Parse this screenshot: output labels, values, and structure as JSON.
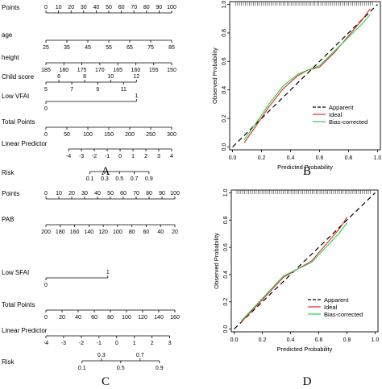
{
  "panels": {
    "A": "A",
    "B": "B",
    "C": "C",
    "D": "D"
  },
  "nomogram_A": {
    "rows": [
      {
        "label": "Points",
        "domain": [
          0,
          100
        ],
        "ticks": [
          0,
          10,
          20,
          30,
          40,
          50,
          60,
          70,
          80,
          90,
          100
        ],
        "tick_side": "above"
      },
      {
        "label": "age",
        "domain": [
          25,
          85
        ],
        "ticks": [
          25,
          35,
          45,
          55,
          65,
          75,
          85
        ],
        "tick_side": "below"
      },
      {
        "label": "height",
        "domain": [
          185,
          150
        ],
        "ticks": [
          185,
          180,
          175,
          170,
          165,
          160,
          155,
          150
        ],
        "tick_side": "below"
      },
      {
        "label": "Child score",
        "domain": [
          5,
          12
        ],
        "ticks": [
          5,
          6,
          7,
          8,
          9,
          10,
          11,
          12
        ],
        "tick_side": "alternate"
      },
      {
        "label": "Low VFAI",
        "domain": [
          0,
          1
        ],
        "ticks": [
          0,
          1
        ],
        "tick_side": "alternate"
      },
      {
        "label": "Total Points",
        "domain": [
          0,
          300
        ],
        "ticks": [
          0,
          50,
          100,
          150,
          200,
          250,
          300
        ],
        "tick_side": "below"
      },
      {
        "label": "Linear Predictor",
        "domain": [
          -4,
          4
        ],
        "ticks": [
          -4,
          -3,
          -2,
          -1,
          0,
          1,
          2,
          3,
          4
        ],
        "tick_side": "below"
      },
      {
        "label": "Risk",
        "domain": [
          0.1,
          0.9
        ],
        "ticks": [
          0.1,
          0.3,
          0.5,
          0.7,
          0.9
        ],
        "tick_side": "below"
      }
    ]
  },
  "nomogram_C": {
    "rows": [
      {
        "label": "Points",
        "domain": [
          0,
          100
        ],
        "ticks": [
          0,
          10,
          20,
          30,
          40,
          50,
          60,
          70,
          80,
          90,
          100
        ],
        "tick_side": "above"
      },
      {
        "label": "PAB",
        "domain": [
          200,
          20
        ],
        "ticks": [
          200,
          180,
          160,
          140,
          120,
          100,
          80,
          60,
          40,
          20
        ],
        "tick_side": "below"
      },
      {
        "label": "Low SFAI",
        "domain": [
          0,
          1
        ],
        "ticks": [
          0,
          1
        ],
        "tick_side": "alternate"
      },
      {
        "label": "Total Points",
        "domain": [
          0,
          160
        ],
        "ticks": [
          0,
          20,
          40,
          60,
          80,
          100,
          120,
          140,
          160
        ],
        "tick_side": "below"
      },
      {
        "label": "Linear Predictor",
        "domain": [
          -4,
          3
        ],
        "ticks": [
          -4,
          -3,
          -2,
          -1,
          0,
          1,
          2,
          3
        ],
        "tick_side": "below"
      },
      {
        "label": "Risk",
        "domain": [
          0.1,
          0.9
        ],
        "ticks": [
          0.1,
          0.3,
          0.5,
          0.7,
          0.9
        ],
        "tick_side": "alternate"
      }
    ]
  },
  "chart_data": [
    {
      "type": "line",
      "panel": "B",
      "xlabel": "Predicted Probability",
      "ylabel": "Observed Probability",
      "xlim": [
        -0.02,
        1.02
      ],
      "ylim": [
        -0.02,
        1.02
      ],
      "xticks": [
        0.0,
        0.2,
        0.4,
        0.6,
        0.8,
        1.0
      ],
      "yticks": [
        0.0,
        0.2,
        0.4,
        0.6,
        0.8,
        1.0
      ],
      "grid": false,
      "legend": "bottom-right",
      "series": [
        {
          "name": "Apparent",
          "color": "#000000",
          "dash": "6,4",
          "x": [
            0.0,
            1.0
          ],
          "y": [
            0.0,
            1.0
          ]
        },
        {
          "name": "Ideal",
          "color": "#e8272a",
          "dash": "",
          "x": [
            0.08,
            0.15,
            0.25,
            0.35,
            0.45,
            0.52,
            0.6,
            0.7,
            0.8,
            0.9,
            0.95
          ],
          "y": [
            0.03,
            0.13,
            0.28,
            0.41,
            0.5,
            0.54,
            0.56,
            0.66,
            0.78,
            0.9,
            0.97
          ]
        },
        {
          "name": "Bias-corrected",
          "color": "#28d24a",
          "dash": "",
          "x": [
            0.08,
            0.15,
            0.25,
            0.35,
            0.45,
            0.52,
            0.6,
            0.7,
            0.8,
            0.9,
            0.95
          ],
          "y": [
            0.05,
            0.15,
            0.3,
            0.43,
            0.51,
            0.54,
            0.57,
            0.67,
            0.77,
            0.87,
            0.93
          ]
        }
      ]
    },
    {
      "type": "line",
      "panel": "D",
      "xlabel": "Predicted Probability",
      "ylabel": "Observed Probability",
      "xlim": [
        -0.02,
        1.02
      ],
      "ylim": [
        -0.02,
        1.02
      ],
      "xticks": [
        0.0,
        0.2,
        0.4,
        0.6,
        0.8,
        1.0
      ],
      "yticks": [
        0.0,
        0.2,
        0.4,
        0.6,
        0.8,
        1.0
      ],
      "grid": false,
      "legend": "bottom-right",
      "series": [
        {
          "name": "Apparent",
          "color": "#000000",
          "dash": "6,4",
          "x": [
            0.0,
            1.0
          ],
          "y": [
            0.0,
            1.0
          ]
        },
        {
          "name": "Ideal",
          "color": "#e8272a",
          "dash": "",
          "x": [
            0.05,
            0.15,
            0.25,
            0.35,
            0.45,
            0.55,
            0.65,
            0.75,
            0.8
          ],
          "y": [
            0.05,
            0.16,
            0.27,
            0.38,
            0.44,
            0.5,
            0.62,
            0.74,
            0.82
          ]
        },
        {
          "name": "Bias-corrected",
          "color": "#28d24a",
          "dash": "",
          "x": [
            0.05,
            0.15,
            0.25,
            0.35,
            0.45,
            0.55,
            0.65,
            0.75,
            0.8
          ],
          "y": [
            0.06,
            0.17,
            0.28,
            0.39,
            0.44,
            0.49,
            0.6,
            0.71,
            0.78
          ]
        }
      ]
    }
  ]
}
